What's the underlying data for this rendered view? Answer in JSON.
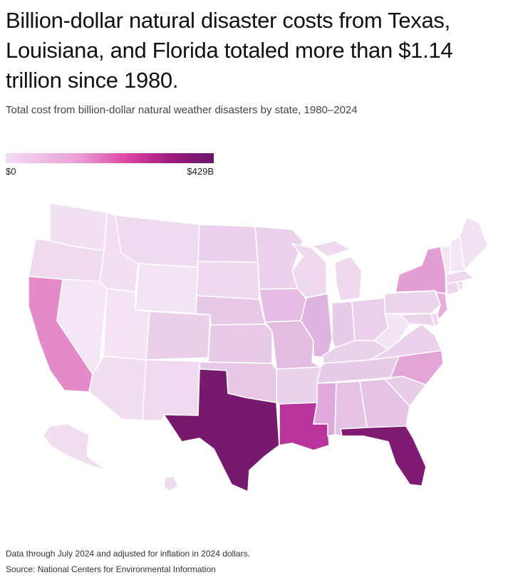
{
  "header": {
    "title": "Billion-dollar natural disaster costs from Texas, Louisiana, and Florida totaled more than $1.14 trillion since 1980.",
    "subtitle": "Total cost from billion-dollar natural weather disasters by state, 1980–2024"
  },
  "legend": {
    "min_label": "$0",
    "max_label": "$429B",
    "color_low": "#f3def3",
    "color_high": "#6a1468"
  },
  "map": {
    "state_colors": {
      "WA": "#f1e0f1",
      "OR": "#efdaee",
      "CA": "#e48ac9",
      "NV": "#f5e6f5",
      "ID": "#f2e0f2",
      "MT": "#efdbef",
      "WY": "#f3e4f3",
      "UT": "#f3e3f3",
      "AZ": "#f0ddf0",
      "NM": "#efdaef",
      "CO": "#eacfe9",
      "ND": "#ead0ea",
      "SD": "#eed9ee",
      "NE": "#e7c8e7",
      "KS": "#e8cae8",
      "OK": "#e7c6e6",
      "TX": "#771a6d",
      "MN": "#ebd1eb",
      "IA": "#e3bbe3",
      "MO": "#e3bce2",
      "AR": "#ebd2eb",
      "LA": "#b8339a",
      "WI": "#efd9ef",
      "IL": "#e0b4e0",
      "MI": "#efd9ef",
      "IN": "#e8cbe8",
      "OH": "#ead0ea",
      "KY": "#ebd2eb",
      "TN": "#e8cbe8",
      "MS": "#e1a8da",
      "AL": "#e6c2e5",
      "GA": "#e6c2e5",
      "FL": "#7f1b72",
      "SC": "#e9cce8",
      "NC": "#e3a4d6",
      "VA": "#ebd1eb",
      "WV": "#f3e5f3",
      "PA": "#ecd4ec",
      "NY": "#e39fd3",
      "VT": "#f4e6f4",
      "NH": "#f4e6f4",
      "ME": "#f2e2f2",
      "MA": "#efd8ef",
      "CT": "#eed7ee",
      "RI": "#f1dff1",
      "NJ": "#e6aedb",
      "DE": "#eed7ee",
      "MD": "#ecd3ec",
      "AK": "#f1dff1",
      "HI": "#f0dcf0"
    }
  },
  "footer": {
    "note": "Data through July 2024 and adjusted for inflation in 2024 dollars.",
    "source": "Source: National Centers for Environmental Information"
  }
}
